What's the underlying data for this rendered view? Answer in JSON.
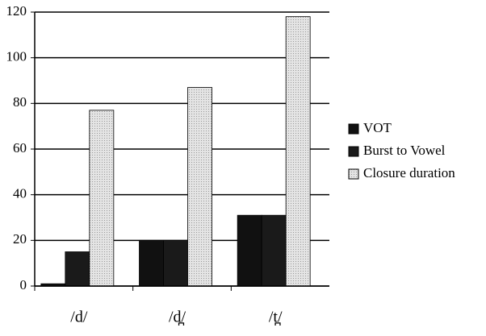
{
  "chart_data": {
    "type": "bar",
    "categories": [
      "/d/",
      "/d̪/",
      "/t̪/"
    ],
    "series": [
      {
        "name": "VOT",
        "color": "#111111",
        "values": [
          1,
          20,
          31
        ]
      },
      {
        "name": "Burst to Vowel",
        "color": "#1a1a1a",
        "values": [
          15,
          20,
          31
        ]
      },
      {
        "name": "Closure duration",
        "color": "#d9d9d9",
        "values": [
          77,
          87,
          118
        ]
      }
    ],
    "ylim": [
      0,
      120
    ],
    "yticks": [
      0,
      20,
      40,
      60,
      80,
      100,
      120
    ],
    "grid": true,
    "legend": "right"
  }
}
